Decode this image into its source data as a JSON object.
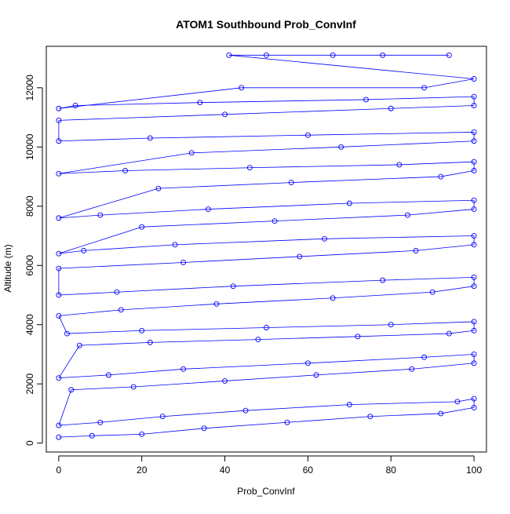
{
  "chart_data": {
    "type": "scatter",
    "title": "ATOM1 Southbound Prob_ConvInf",
    "xlabel": "Prob_ConvInf",
    "ylabel": "Altitude (m)",
    "xlim": [
      -3,
      103
    ],
    "ylim": [
      -300,
      13400
    ],
    "xticks": [
      0,
      20,
      40,
      60,
      80,
      100
    ],
    "yticks": [
      0,
      2000,
      4000,
      6000,
      8000,
      10000,
      12000
    ],
    "grid": false,
    "legend": "none",
    "series_color": "#0000ff",
    "series": [
      {
        "style": "points-and-lines",
        "x": [
          0,
          8,
          20,
          35,
          55,
          75,
          92,
          100,
          100,
          96,
          70,
          45,
          25,
          10,
          0,
          3,
          18,
          40,
          62,
          85,
          100,
          100,
          88,
          60,
          30,
          12,
          0,
          5,
          22,
          48,
          72,
          94,
          100,
          100,
          80,
          50,
          20,
          2,
          0,
          15,
          38,
          66,
          90,
          100,
          100,
          78,
          42,
          14,
          0,
          0,
          30,
          58,
          86,
          100,
          100,
          64,
          28,
          6,
          0,
          20,
          52,
          84,
          100,
          100,
          70,
          36,
          10,
          0,
          24,
          56,
          92,
          100,
          100,
          82,
          46,
          16,
          0,
          32,
          68,
          100,
          100,
          60,
          22,
          0,
          0,
          40,
          80,
          100,
          100,
          74,
          34,
          4,
          0,
          44,
          88,
          100,
          41,
          50,
          66,
          78,
          94
        ],
        "y": [
          200,
          250,
          300,
          500,
          700,
          900,
          1000,
          1200,
          1500,
          1400,
          1300,
          1100,
          900,
          700,
          600,
          1800,
          1900,
          2100,
          2300,
          2500,
          2700,
          3000,
          2900,
          2700,
          2500,
          2300,
          2200,
          3300,
          3400,
          3500,
          3600,
          3700,
          3800,
          4100,
          4000,
          3900,
          3800,
          3700,
          4300,
          4500,
          4700,
          4900,
          5100,
          5300,
          5600,
          5500,
          5300,
          5100,
          5000,
          5900,
          6100,
          6300,
          6500,
          6700,
          7000,
          6900,
          6700,
          6500,
          6400,
          7300,
          7500,
          7700,
          7900,
          8200,
          8100,
          7900,
          7700,
          7600,
          8600,
          8800,
          9000,
          9200,
          9500,
          9400,
          9300,
          9200,
          9100,
          9800,
          10000,
          10200,
          10500,
          10400,
          10300,
          10200,
          10900,
          11100,
          11300,
          11400,
          11700,
          11600,
          11500,
          11400,
          11300,
          12000,
          12000,
          12300,
          13100,
          13100,
          13100,
          13100,
          13100
        ]
      }
    ]
  }
}
